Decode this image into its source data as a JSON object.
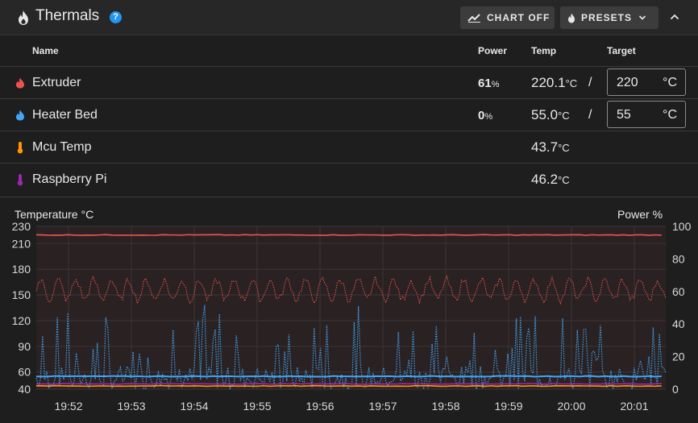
{
  "header": {
    "title": "Thermals",
    "help_icon": "?",
    "chart_button": "CHART OFF",
    "presets_button": "PRESETS"
  },
  "columns": {
    "name": "Name",
    "power": "Power",
    "temp": "Temp",
    "target": "Target"
  },
  "rows": [
    {
      "name": "Extruder",
      "power": "61",
      "power_unit": "%",
      "temp": "220.1",
      "temp_unit": "°C",
      "slash": "/",
      "target": "220",
      "target_unit": "°C",
      "color": "#ef5350",
      "icon": "fire-icon"
    },
    {
      "name": "Heater Bed",
      "power": "0",
      "power_unit": "%",
      "temp": "55.0",
      "temp_unit": "°C",
      "slash": "/",
      "target": "55",
      "target_unit": "°C",
      "color": "#42a5f5",
      "icon": "fire-icon"
    },
    {
      "name": "Mcu Temp",
      "temp": "43.7",
      "temp_unit": "°C",
      "color": "#ff9800",
      "icon": "thermometer-icon"
    },
    {
      "name": "Raspberry Pi",
      "temp": "46.2",
      "temp_unit": "°C",
      "color": "#9c27b0",
      "icon": "thermometer-icon"
    }
  ],
  "chart_data": {
    "type": "line",
    "ylabel": "Temperature °C",
    "y2label": "Power %",
    "y_ticks": [
      40,
      60,
      90,
      120,
      150,
      180,
      210,
      230
    ],
    "y2_ticks": [
      0,
      20,
      40,
      60,
      80,
      100
    ],
    "ylim": [
      40,
      230
    ],
    "y2lim": [
      0,
      100
    ],
    "x_ticks": [
      "19:52",
      "19:53",
      "19:54",
      "19:55",
      "19:56",
      "19:57",
      "19:58",
      "19:59",
      "20:00",
      "20:01"
    ],
    "series": [
      {
        "label": "Extruder",
        "kind": "temp",
        "color": "#ef5350",
        "approx_value": 220
      },
      {
        "label": "Extruder",
        "kind": "power",
        "color": "#ef5350",
        "approx_range": [
          55,
          70
        ]
      },
      {
        "label": "Heater Bed",
        "kind": "temp",
        "color": "#42a5f5",
        "approx_value": 55
      },
      {
        "label": "Heater Bed",
        "kind": "power",
        "color": "#42a5f5",
        "approx_range": [
          0,
          53
        ]
      },
      {
        "label": "Mcu Temp",
        "kind": "temp",
        "color": "#ff9800",
        "approx_value": 43.7
      },
      {
        "label": "Raspberry Pi",
        "kind": "temp",
        "color": "#9c27b0",
        "approx_value": 46.2
      }
    ],
    "grid": true
  }
}
